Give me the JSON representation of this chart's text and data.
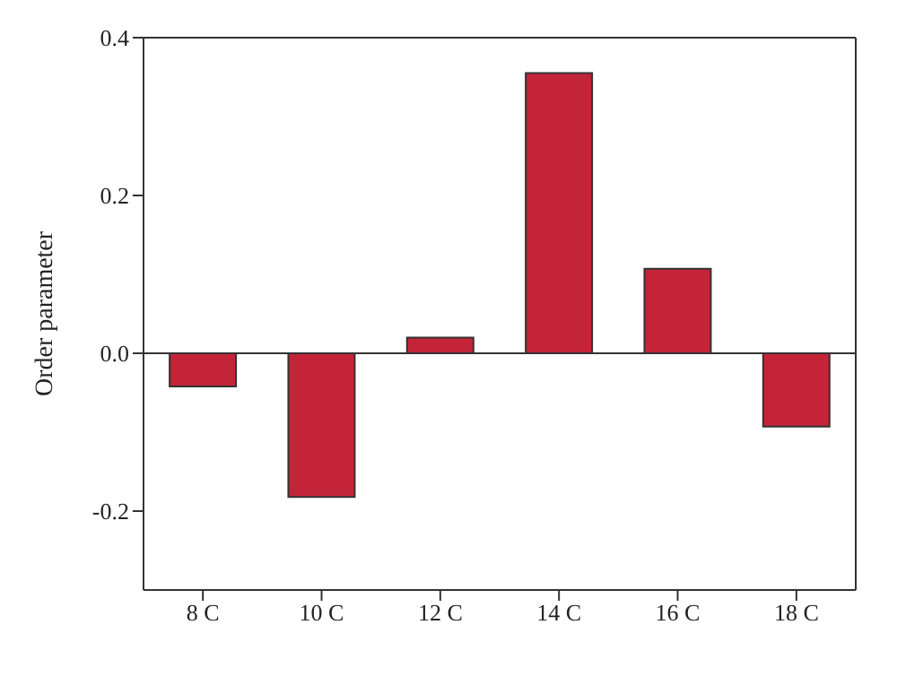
{
  "chart_data": {
    "type": "bar",
    "ylabel": "Order parameter",
    "categories": [
      "8 C",
      "10 C",
      "12 C",
      "14 C",
      "16 C",
      "18 C"
    ],
    "values": [
      -0.042,
      -0.182,
      0.02,
      0.355,
      0.107,
      -0.093
    ],
    "color": "#c42438",
    "ylim": [
      -0.3,
      0.4
    ],
    "yticks": [
      {
        "value": -0.2,
        "label": "-0.2"
      },
      {
        "value": 0,
        "label": "0.0"
      },
      {
        "value": 0.2,
        "label": "0.2"
      },
      {
        "value": 0.4,
        "label": "0.4"
      }
    ],
    "grid": false,
    "legend": false,
    "ref_lines": [
      {
        "axis": "y",
        "value": 0,
        "color": "#333333"
      }
    ]
  }
}
